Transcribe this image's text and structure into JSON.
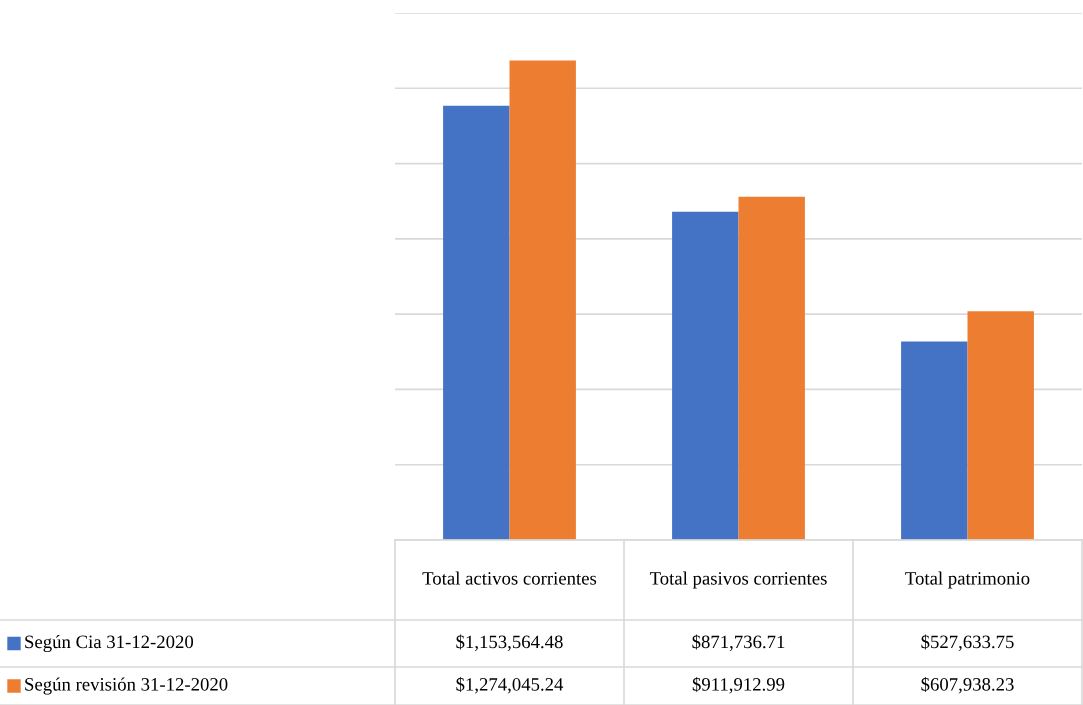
{
  "chart_data": {
    "type": "bar",
    "categories": [
      "Total activos corrientes",
      "Total pasivos corrientes",
      "Total patrimonio"
    ],
    "series": [
      {
        "name": "Según Cia 31-12-2020",
        "color": "#4472c4",
        "values": [
          1153564.48,
          871736.71,
          527633.75
        ],
        "value_labels": [
          "$1,153,564.48",
          "$871,736.71",
          "$527,633.75"
        ]
      },
      {
        "name": "Según revisión 31-12-2020",
        "color": "#ed7d31",
        "values": [
          1274045.24,
          911912.99,
          607938.23
        ],
        "value_labels": [
          "$1,274,045.24",
          "$911,912.99",
          "$607,938.23"
        ]
      }
    ],
    "ylim": [
      0,
      1400000
    ],
    "yticks": [
      {
        "value": 0,
        "label": null
      },
      {
        "value": 200000,
        "label": null
      },
      {
        "value": 400000,
        "label": null
      },
      {
        "value": 600000,
        "label": null
      },
      {
        "value": 800000,
        "label": null
      },
      {
        "value": 1000000,
        "label": null
      },
      {
        "value": 1200000,
        "label": null
      },
      {
        "value": 1400000,
        "label": null
      }
    ],
    "tick_labels": "x",
    "grid": "y",
    "legend": "left"
  }
}
